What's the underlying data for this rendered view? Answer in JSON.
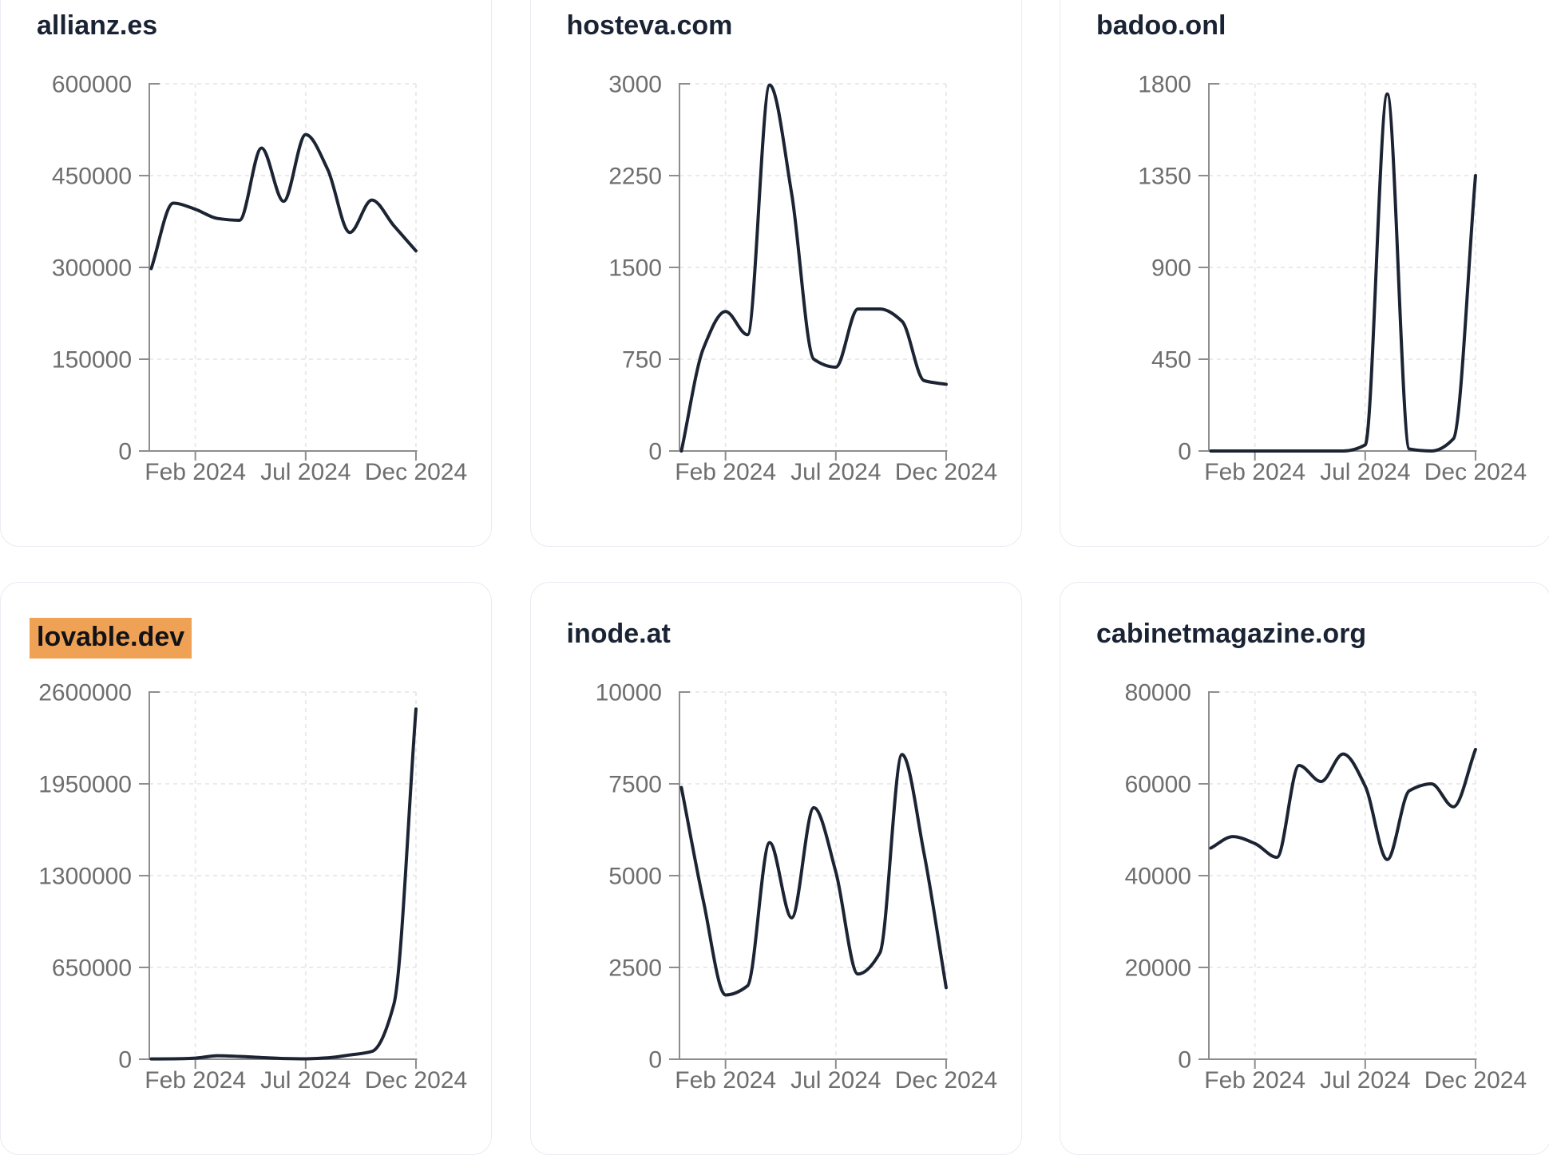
{
  "theme": {
    "background": "#ffffff",
    "card_border_color": "#e9ebf1",
    "title_color": "#1a2333",
    "line_color": "#1c2433",
    "axis_color": "#8d8d8d",
    "tick_label_color": "#6e6e6e",
    "grid_color": "#e8e8e8",
    "highlight_color": "#efa255"
  },
  "chart_data": [
    {
      "type": "line",
      "title": "allianz.es",
      "highlighted": false,
      "x": [
        "Dec 2023",
        "Jan 2024",
        "Feb 2024",
        "Mar 2024",
        "Apr 2024",
        "May 2024",
        "Jun 2024",
        "Jul 2024",
        "Aug 2024",
        "Sep 2024",
        "Oct 2024",
        "Nov 2024",
        "Dec 2024"
      ],
      "values": [
        298000,
        405000,
        395000,
        380000,
        377000,
        495000,
        408000,
        517000,
        460000,
        357000,
        410000,
        368000,
        327000
      ],
      "y_ticks": [
        0,
        150000,
        300000,
        450000,
        600000
      ],
      "ylim": [
        0,
        600000
      ],
      "x_tick_labels": [
        "Feb 2024",
        "Jul 2024",
        "Dec 2024"
      ],
      "x_tick_indices": [
        2,
        7,
        12
      ],
      "grid": true,
      "legend": "none"
    },
    {
      "type": "line",
      "title": "hosteva.com",
      "highlighted": false,
      "x": [
        "Dec 2023",
        "Jan 2024",
        "Feb 2024",
        "Mar 2024",
        "Apr 2024",
        "May 2024",
        "Jun 2024",
        "Jul 2024",
        "Aug 2024",
        "Sep 2024",
        "Oct 2024",
        "Nov 2024",
        "Dec 2024"
      ],
      "values": [
        0,
        840,
        1140,
        950,
        2990,
        2100,
        750,
        685,
        1160,
        1160,
        1060,
        575,
        545
      ],
      "y_ticks": [
        0,
        750,
        1500,
        2250,
        3000
      ],
      "ylim": [
        0,
        3000
      ],
      "x_tick_labels": [
        "Feb 2024",
        "Jul 2024",
        "Dec 2024"
      ],
      "x_tick_indices": [
        2,
        7,
        12
      ],
      "grid": true,
      "legend": "none"
    },
    {
      "type": "line",
      "title": "badoo.onl",
      "highlighted": false,
      "x": [
        "Dec 2023",
        "Jan 2024",
        "Feb 2024",
        "Mar 2024",
        "Apr 2024",
        "May 2024",
        "Jun 2024",
        "Jul 2024",
        "Aug 2024",
        "Sep 2024",
        "Oct 2024",
        "Nov 2024",
        "Dec 2024"
      ],
      "values": [
        0,
        0,
        0,
        0,
        0,
        0,
        0,
        30,
        1750,
        10,
        0,
        60,
        1350
      ],
      "y_ticks": [
        0,
        450,
        900,
        1350,
        1800
      ],
      "ylim": [
        0,
        1800
      ],
      "x_tick_labels": [
        "Feb 2024",
        "Jul 2024",
        "Dec 2024"
      ],
      "x_tick_indices": [
        2,
        7,
        12
      ],
      "grid": true,
      "legend": "none"
    },
    {
      "type": "line",
      "title": "lovable.dev",
      "highlighted": true,
      "x": [
        "Dec 2023",
        "Jan 2024",
        "Feb 2024",
        "Mar 2024",
        "Apr 2024",
        "May 2024",
        "Jun 2024",
        "Jul 2024",
        "Aug 2024",
        "Sep 2024",
        "Oct 2024",
        "Nov 2024",
        "Dec 2024"
      ],
      "values": [
        2000,
        3000,
        8000,
        25000,
        20000,
        12000,
        5000,
        3000,
        10000,
        30000,
        55000,
        390000,
        2480000
      ],
      "y_ticks": [
        0,
        650000,
        1300000,
        1950000,
        2600000
      ],
      "ylim": [
        0,
        2600000
      ],
      "x_tick_labels": [
        "Feb 2024",
        "Jul 2024",
        "Dec 2024"
      ],
      "x_tick_indices": [
        2,
        7,
        12
      ],
      "grid": true,
      "legend": "none"
    },
    {
      "type": "line",
      "title": "inode.at",
      "highlighted": false,
      "x": [
        "Dec 2023",
        "Jan 2024",
        "Feb 2024",
        "Mar 2024",
        "Apr 2024",
        "May 2024",
        "Jun 2024",
        "Jul 2024",
        "Aug 2024",
        "Sep 2024",
        "Oct 2024",
        "Nov 2024",
        "Dec 2024"
      ],
      "values": [
        7400,
        4300,
        1750,
        2000,
        5900,
        3850,
        6850,
        5100,
        2320,
        2900,
        8300,
        5600,
        1950
      ],
      "y_ticks": [
        0,
        2500,
        5000,
        7500,
        10000
      ],
      "ylim": [
        0,
        10000
      ],
      "x_tick_labels": [
        "Feb 2024",
        "Jul 2024",
        "Dec 2024"
      ],
      "x_tick_indices": [
        2,
        7,
        12
      ],
      "grid": true,
      "legend": "none"
    },
    {
      "type": "line",
      "title": "cabinetmagazine.org",
      "highlighted": false,
      "x": [
        "Dec 2023",
        "Jan 2024",
        "Feb 2024",
        "Mar 2024",
        "Apr 2024",
        "May 2024",
        "Jun 2024",
        "Jul 2024",
        "Aug 2024",
        "Sep 2024",
        "Oct 2024",
        "Nov 2024",
        "Dec 2024"
      ],
      "values": [
        46000,
        48500,
        47000,
        44000,
        64000,
        60500,
        66500,
        59500,
        43500,
        58500,
        60000,
        55000,
        67500
      ],
      "y_ticks": [
        0,
        20000,
        40000,
        60000,
        80000
      ],
      "ylim": [
        0,
        80000
      ],
      "x_tick_labels": [
        "Feb 2024",
        "Jul 2024",
        "Dec 2024"
      ],
      "x_tick_indices": [
        2,
        7,
        12
      ],
      "grid": true,
      "legend": "none"
    }
  ]
}
